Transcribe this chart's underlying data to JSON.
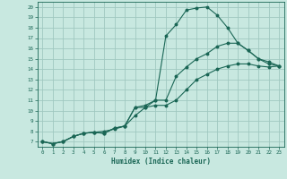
{
  "background_color": "#c8e8e0",
  "grid_color": "#a0c8c0",
  "line_color": "#1a6655",
  "marker_color": "#1a6655",
  "xlabel": "Humidex (Indice chaleur)",
  "xlim": [
    -0.5,
    23.5
  ],
  "ylim": [
    6.5,
    20.5
  ],
  "yticks": [
    7,
    8,
    9,
    10,
    11,
    12,
    13,
    14,
    15,
    16,
    17,
    18,
    19,
    20
  ],
  "xticks": [
    0,
    1,
    2,
    3,
    4,
    5,
    6,
    7,
    8,
    9,
    10,
    11,
    12,
    13,
    14,
    15,
    16,
    17,
    18,
    19,
    20,
    21,
    22,
    23
  ],
  "lines": [
    {
      "x": [
        0,
        1,
        2,
        3,
        4,
        5,
        6,
        7,
        8,
        9,
        10,
        11,
        12,
        13,
        14,
        15,
        16,
        17,
        18,
        19,
        20,
        21,
        22,
        23
      ],
      "y": [
        7.0,
        6.8,
        7.0,
        7.5,
        7.8,
        7.9,
        8.0,
        8.2,
        8.5,
        10.3,
        10.5,
        11.0,
        17.2,
        18.3,
        19.7,
        19.9,
        20.0,
        19.2,
        18.0,
        16.5,
        15.8,
        15.0,
        14.7,
        14.3
      ]
    },
    {
      "x": [
        0,
        1,
        2,
        3,
        4,
        5,
        6,
        7,
        8,
        9,
        10,
        11,
        12,
        13,
        14,
        15,
        16,
        17,
        18,
        19,
        20,
        21,
        22,
        23
      ],
      "y": [
        7.0,
        6.8,
        7.0,
        7.5,
        7.8,
        7.9,
        7.8,
        8.3,
        8.5,
        10.3,
        10.3,
        11.0,
        11.0,
        13.3,
        14.2,
        15.0,
        15.5,
        16.2,
        16.5,
        16.5,
        15.8,
        15.0,
        14.5,
        14.3
      ]
    },
    {
      "x": [
        0,
        1,
        2,
        3,
        4,
        5,
        6,
        7,
        8,
        9,
        10,
        11,
        12,
        13,
        14,
        15,
        16,
        17,
        18,
        19,
        20,
        21,
        22,
        23
      ],
      "y": [
        7.0,
        6.8,
        7.0,
        7.5,
        7.8,
        7.9,
        7.8,
        8.3,
        8.5,
        9.5,
        10.3,
        10.5,
        10.5,
        11.0,
        12.0,
        13.0,
        13.5,
        14.0,
        14.3,
        14.5,
        14.5,
        14.3,
        14.2,
        14.3
      ]
    }
  ]
}
